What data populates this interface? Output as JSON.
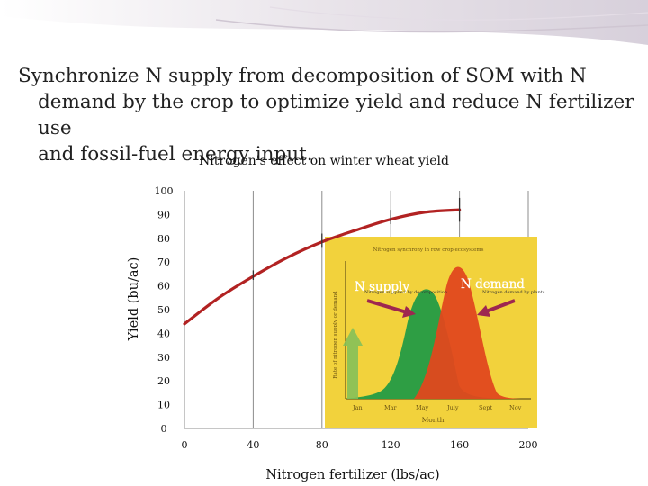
{
  "slide": {
    "title_lines": [
      "Synchronize N supply from decomposition of SOM with N",
      "demand by the crop to optimize yield and reduce N fertilizer use",
      "and fossil-fuel energy input."
    ]
  },
  "chart_data": {
    "type": "line",
    "title": "Nitrogen's effect on winter wheat yield",
    "xlabel": "Nitrogen fertilizer  (lbs/ac)",
    "ylabel": "Yield (bu/ac)",
    "xlim": [
      0,
      200
    ],
    "ylim": [
      0,
      100
    ],
    "x_ticks": [
      0,
      40,
      80,
      120,
      160,
      200
    ],
    "y_ticks": [
      0,
      10,
      20,
      30,
      40,
      50,
      60,
      70,
      80,
      90,
      100
    ],
    "grid": "vertical",
    "series": [
      {
        "name": "Yield",
        "color": "#b22222",
        "x": [
          0,
          20,
          40,
          60,
          80,
          100,
          120,
          140,
          160
        ],
        "y": [
          44,
          55,
          64,
          72,
          78.5,
          83.5,
          88,
          91,
          92
        ]
      }
    ],
    "error_bars": [
      {
        "x": 40,
        "y": 64.5,
        "half": 2
      },
      {
        "x": 80,
        "y": 79,
        "half": 3
      },
      {
        "x": 120,
        "y": 89,
        "half": 3
      },
      {
        "x": 160,
        "y": 92,
        "half": 5
      }
    ],
    "annotations": [
      "N supply",
      "N demand"
    ]
  },
  "inset": {
    "title": "Nitrogen synchrony in row crop ecosystems",
    "ylabel": "Rate of nitrogen supply or demand",
    "xlabel": "Month",
    "months": [
      "Jan",
      "Mar",
      "May",
      "July",
      "Sept",
      "Nov"
    ],
    "legend_supply": "Nitrogen supplied by decomposition",
    "legend_demand": "Nitrogen demand by plants",
    "colors": {
      "background": "#f2d23c",
      "supply": "#2e9e44",
      "demand": "#e0481e",
      "arrow": "#9e2650"
    }
  }
}
